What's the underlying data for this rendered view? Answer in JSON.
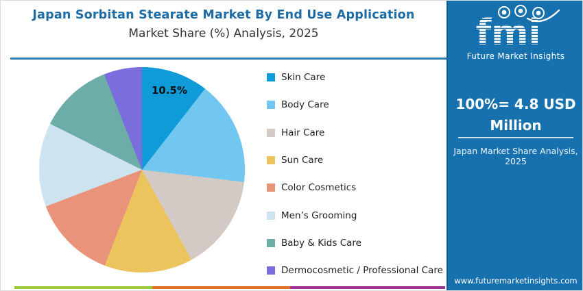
{
  "header": {
    "title": "Japan Sorbitan Stearate Market By End Use Application",
    "subtitle": "Market Share (%) Analysis, 2025"
  },
  "chart_data": {
    "type": "pie",
    "title": "Japan Sorbitan Stearate Market By End Use Application — Market Share (%) Analysis, 2025",
    "unit": "%",
    "start_angle_deg": 0,
    "direction": "clockwise",
    "total_label": "100%= 4.8 USD Million",
    "items": [
      {
        "label": "Skin Care",
        "value": 10.5,
        "datalabel": "10.5%",
        "color": "#0e9bd8"
      },
      {
        "label": "Body Care",
        "value": 16.4,
        "datalabel": "",
        "color": "#72c7f0"
      },
      {
        "label": "Hair Care",
        "value": 15.1,
        "datalabel": "",
        "color": "#d4cac5"
      },
      {
        "label": "Sun Care",
        "value": 13.9,
        "datalabel": "",
        "color": "#ecc45e"
      },
      {
        "label": "Color Cosmetics",
        "value": 13.3,
        "datalabel": "",
        "color": "#e8937a"
      },
      {
        "label": "Men’s Grooming",
        "value": 13.2,
        "datalabel": "",
        "color": "#cde4f0"
      },
      {
        "label": "Baby & Kids Care",
        "value": 11.6,
        "datalabel": "",
        "color": "#6dada8"
      },
      {
        "label": "Dermocosmetic / Professional Care",
        "value": 6.0,
        "datalabel": "",
        "color": "#7a6edd"
      }
    ],
    "legend_position": "right",
    "grid": false
  },
  "sidebar": {
    "logo": {
      "text": "fmi",
      "tagline": "Future Market Insights"
    },
    "headline": "100%= 4.8 USD Million",
    "caption": "Japan Market Share Analysis, 2025",
    "website": "www.futuremarketinsights.com"
  },
  "theme": {
    "title_color": "#1d6ca6",
    "divider_color": "#2e7cb8",
    "sidebar_bg": "#1671ae",
    "sidebar_border": "#0f5d94"
  },
  "footer_bar": {
    "colors": [
      "#9aca3c",
      "#e0712c",
      "#9b3393"
    ]
  }
}
